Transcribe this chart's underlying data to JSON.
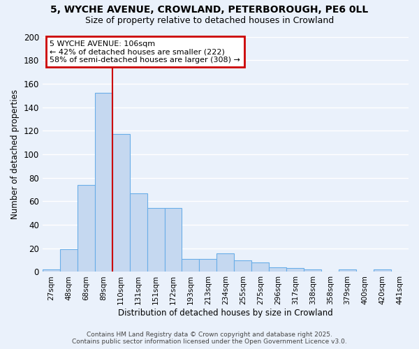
{
  "title_line1": "5, WYCHE AVENUE, CROWLAND, PETERBOROUGH, PE6 0LL",
  "title_line2": "Size of property relative to detached houses in Crowland",
  "xlabel": "Distribution of detached houses by size in Crowland",
  "ylabel": "Number of detached properties",
  "bar_labels": [
    "27sqm",
    "48sqm",
    "68sqm",
    "89sqm",
    "110sqm",
    "131sqm",
    "151sqm",
    "172sqm",
    "193sqm",
    "213sqm",
    "234sqm",
    "255sqm",
    "275sqm",
    "296sqm",
    "317sqm",
    "338sqm",
    "358sqm",
    "379sqm",
    "400sqm",
    "420sqm",
    "441sqm"
  ],
  "bar_values": [
    2,
    19,
    74,
    152,
    117,
    67,
    54,
    54,
    11,
    11,
    16,
    10,
    8,
    4,
    3,
    2,
    0,
    2,
    0,
    2
  ],
  "bar_color": "#c5d8f0",
  "bar_edge_color": "#6aaee8",
  "background_color": "#eaf1fb",
  "grid_color": "#ffffff",
  "red_line_index": 3,
  "annotation_text": "5 WYCHE AVENUE: 106sqm\n← 42% of detached houses are smaller (222)\n58% of semi-detached houses are larger (308) →",
  "annotation_box_color": "#ffffff",
  "annotation_box_edge": "#cc0000",
  "red_line_color": "#cc0000",
  "ylim": [
    0,
    200
  ],
  "yticks": [
    0,
    20,
    40,
    60,
    80,
    100,
    120,
    140,
    160,
    180,
    200
  ],
  "footer_line1": "Contains HM Land Registry data © Crown copyright and database right 2025.",
  "footer_line2": "Contains public sector information licensed under the Open Government Licence v3.0."
}
